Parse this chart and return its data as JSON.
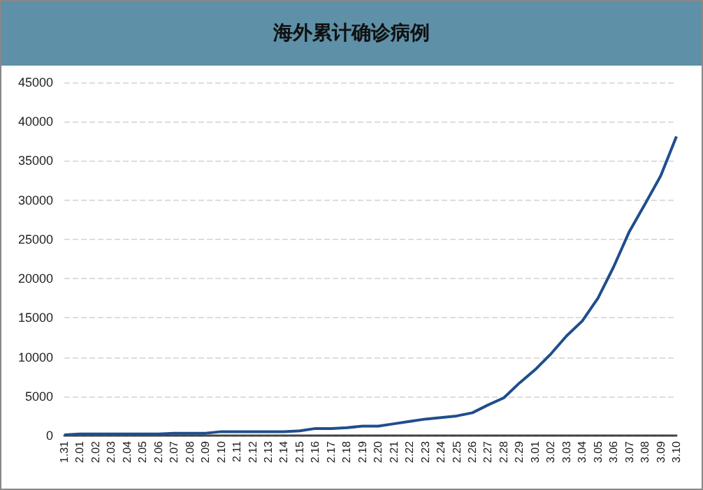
{
  "chart_data": {
    "type": "line",
    "title": "海外累计确诊病例",
    "categories": [
      "1.31",
      "2.01",
      "2.02",
      "2.03",
      "2.04",
      "2.05",
      "2.06",
      "2.07",
      "2.08",
      "2.09",
      "2.10",
      "2.11",
      "2.12",
      "2.13",
      "2.14",
      "2.15",
      "2.16",
      "2.17",
      "2.18",
      "2.19",
      "2.20",
      "2.21",
      "2.22",
      "2.23",
      "2.24",
      "2.25",
      "2.26",
      "2.27",
      "2.28",
      "2.29",
      "3.01",
      "3.02",
      "3.03",
      "3.04",
      "3.05",
      "3.06",
      "3.07",
      "3.08",
      "3.09",
      "3.10"
    ],
    "series": [
      {
        "color": "#1f4e8c",
        "values": [
          100,
          200,
          200,
          200,
          200,
          200,
          200,
          300,
          300,
          300,
          500,
          500,
          500,
          500,
          500,
          600,
          900,
          900,
          1000,
          1200,
          1200,
          1500,
          1800,
          2100,
          2300,
          2500,
          2900,
          3900,
          4800,
          6700,
          8400,
          10400,
          12700,
          14600,
          17500,
          21500,
          26000,
          29500,
          33100,
          38100
        ]
      }
    ],
    "ylim": [
      0,
      45000
    ],
    "yticks": [
      0,
      5000,
      10000,
      15000,
      20000,
      25000,
      30000,
      35000,
      40000,
      45000
    ],
    "grid": "y",
    "marker": "none",
    "line_style": "solid"
  }
}
